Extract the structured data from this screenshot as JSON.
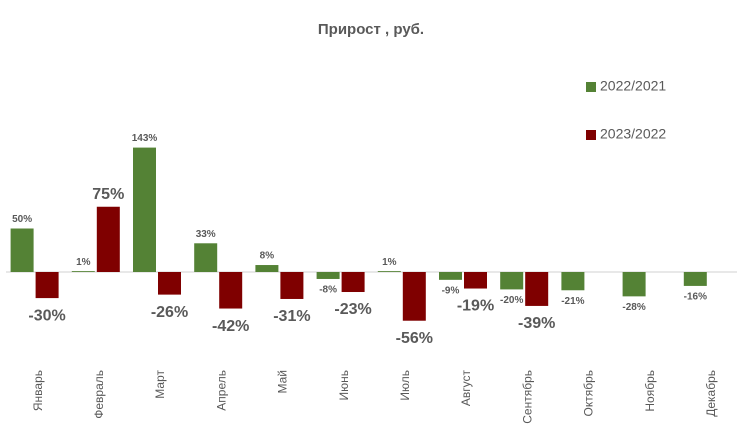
{
  "chart_data": {
    "type": "bar",
    "title": "Прирост , руб.",
    "categories": [
      "Январь",
      "Февраль",
      "Март",
      "Апрель",
      "Май",
      "Июнь",
      "Июль",
      "Август",
      "Сентябрь",
      "Октябрь",
      "Ноябрь",
      "Декабрь"
    ],
    "series": [
      {
        "name": "2022/2021",
        "color": "#548235",
        "values": [
          50,
          1,
          143,
          33,
          8,
          -8,
          1,
          -9,
          -20,
          -21,
          -28,
          -16
        ],
        "value_labels": [
          "50%",
          "1%",
          "143%",
          "33%",
          "8%",
          "-8%",
          "1%",
          "-9%",
          "-20%",
          "-21%",
          "-28%",
          "-16%"
        ]
      },
      {
        "name": "2023/2022",
        "color": "#7f0000",
        "values": [
          -30,
          75,
          -26,
          -42,
          -31,
          -23,
          -56,
          -19,
          -39,
          null,
          null,
          null
        ],
        "value_labels": [
          "-30%",
          "75%",
          "-26%",
          "-42%",
          "-31%",
          "-23%",
          "-56%",
          "-19%",
          "-39%",
          null,
          null,
          null
        ]
      }
    ],
    "legend": "right"
  }
}
